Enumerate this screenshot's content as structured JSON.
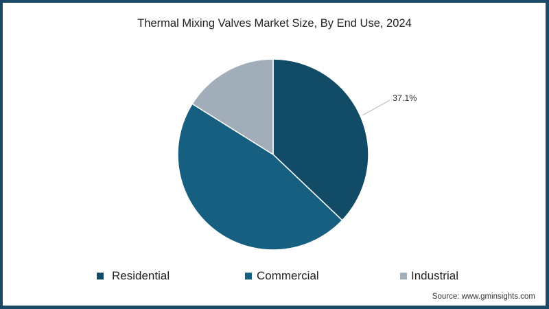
{
  "chart_data": {
    "type": "pie",
    "title": "Thermal Mixing Valves Market Size, By End Use, 2024",
    "categories": [
      "Residential",
      "Commercial",
      "Industrial"
    ],
    "values": [
      37.1,
      46.8,
      16.1
    ],
    "colors": [
      "#114b66",
      "#175f80",
      "#a1aeb9"
    ],
    "data_labels": [
      {
        "category": "Residential",
        "text": "37.1%"
      }
    ],
    "legend_position": "bottom",
    "start_angle_deg": 0,
    "direction": "clockwise"
  },
  "title": "Thermal Mixing Valves Market Size, By End Use, 2024",
  "legend": [
    {
      "label": "Residential",
      "color": "#114b66"
    },
    {
      "label": "Commercial",
      "color": "#175f80"
    },
    {
      "label": "Industrial",
      "color": "#a1aeb9"
    }
  ],
  "annotation": "37.1%",
  "source": "Source: www.gminsights.com",
  "colors": {
    "frame": "#1a4a66"
  }
}
